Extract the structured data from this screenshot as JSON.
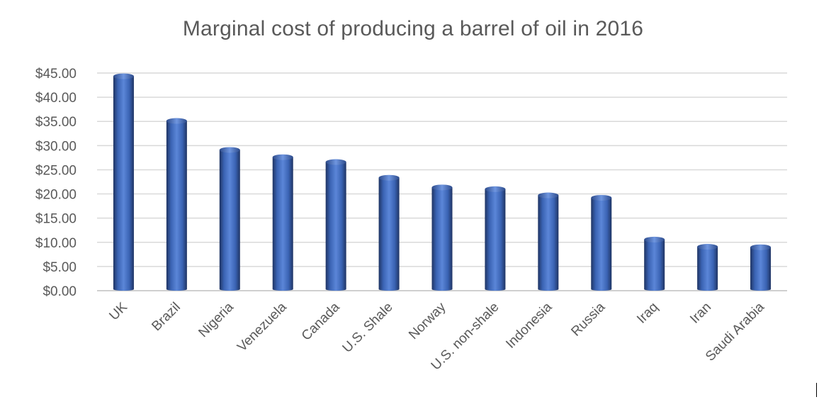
{
  "chart_data": {
    "type": "bar",
    "title": "Marginal cost of producing a barrel of oil in 2016",
    "xlabel": "",
    "ylabel": "",
    "categories": [
      "UK",
      "Brazil",
      "Nigeria",
      "Venezuela",
      "Canada",
      "U.S. Shale",
      "Norway",
      "U.S. non-shale",
      "Indonesia",
      "Russia",
      "Iraq",
      "Iran",
      "Saudi Arabia"
    ],
    "values": [
      44.33,
      35.1,
      29.1,
      27.6,
      26.6,
      23.35,
      21.35,
      20.99,
      19.71,
      19.21,
      10.57,
      9.08,
      8.98
    ],
    "ylim": [
      0,
      45
    ],
    "yticks": [
      0,
      5,
      10,
      15,
      20,
      25,
      30,
      35,
      40,
      45
    ],
    "ytick_labels": [
      "$0.00",
      "$5.00",
      "$10.00",
      "$15.00",
      "$20.00",
      "$25.00",
      "$30.00",
      "$35.00",
      "$40.00",
      "$45.00"
    ],
    "grid": true,
    "legend": "none",
    "bar_color": "#4472c4",
    "bar_style": "cylinder"
  }
}
